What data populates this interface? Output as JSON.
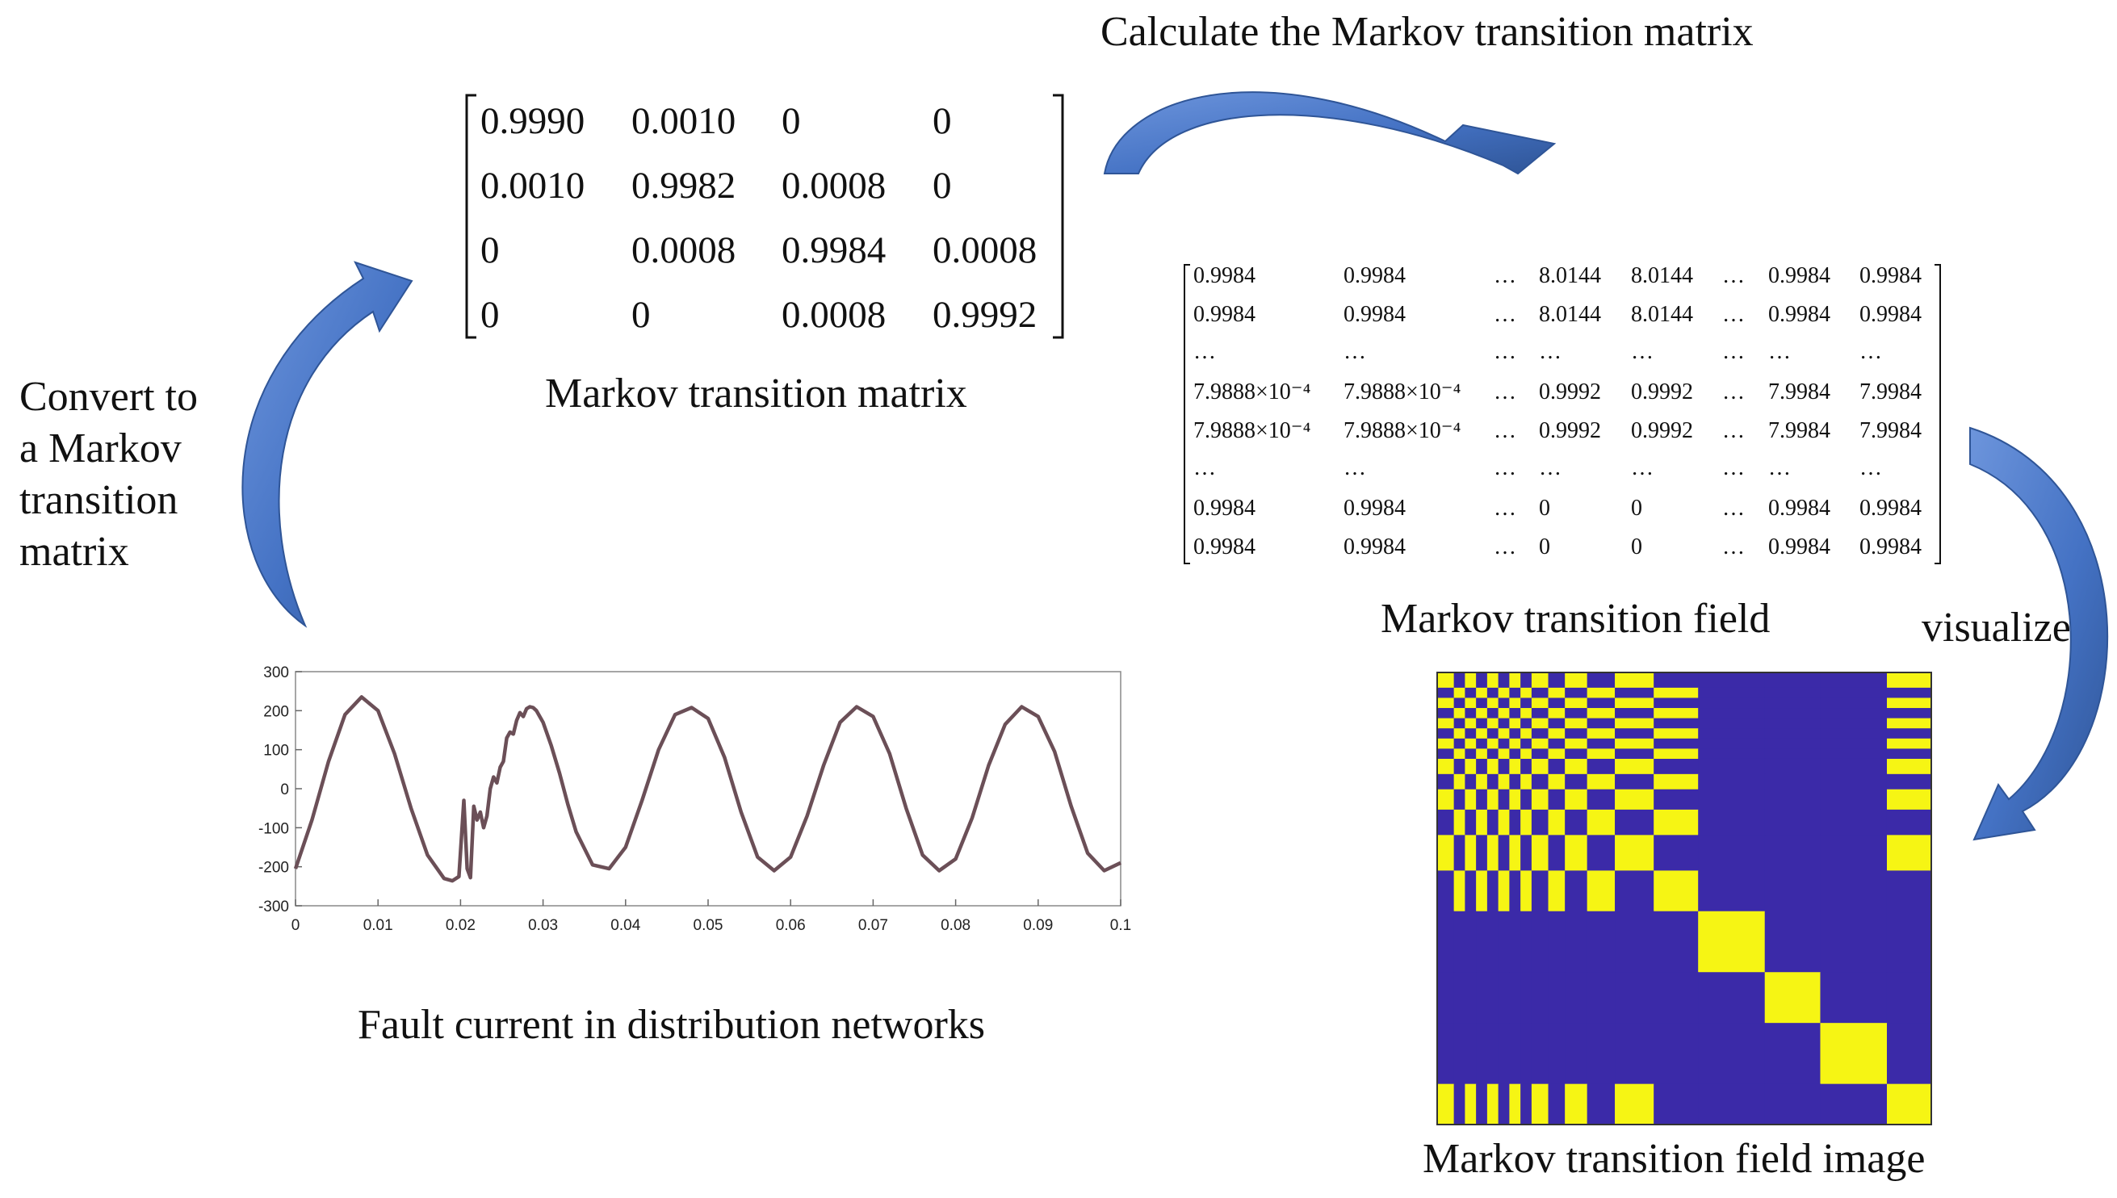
{
  "labels": {
    "calc": "Calculate the Markov transition matrix",
    "convert": [
      "Convert to",
      "a Markov",
      "transition",
      "matrix"
    ],
    "matrix_caption": "Markov transition matrix",
    "field_caption": "Markov transition field",
    "visualize": "visualize",
    "image_caption": "Markov transition field image",
    "signal_caption": "Fault current in distribution networks"
  },
  "transition_matrix": [
    [
      "0.9990",
      "0.0010",
      "0",
      "0"
    ],
    [
      "0.0010",
      "0.9982",
      "0.0008",
      "0"
    ],
    [
      "0",
      "0.0008",
      "0.9984",
      "0.0008"
    ],
    [
      "0",
      "0",
      "0.0008",
      "0.9992"
    ]
  ],
  "transition_field": [
    [
      "0.9984",
      "0.9984",
      "…",
      "8.0144",
      "8.0144",
      "…",
      "0.9984",
      "0.9984"
    ],
    [
      "0.9984",
      "0.9984",
      "…",
      "8.0144",
      "8.0144",
      "…",
      "0.9984",
      "0.9984"
    ],
    [
      "…",
      "…",
      "…",
      "…",
      "…",
      "…",
      "…",
      "…"
    ],
    [
      "7.9888×10⁻⁴",
      "7.9888×10⁻⁴",
      "…",
      "0.9992",
      "0.9992",
      "…",
      "7.9984",
      "7.9984"
    ],
    [
      "7.9888×10⁻⁴",
      "7.9888×10⁻⁴",
      "…",
      "0.9992",
      "0.9992",
      "…",
      "7.9984",
      "7.9984"
    ],
    [
      "…",
      "…",
      "…",
      "…",
      "…",
      "…",
      "…",
      "…"
    ],
    [
      "0.9984",
      "0.9984",
      "…",
      "0",
      "0",
      "…",
      "0.9984",
      "0.9984"
    ],
    [
      "0.9984",
      "0.9984",
      "…",
      "0",
      "0",
      "…",
      "0.9984",
      "0.9984"
    ]
  ],
  "chart_data": {
    "type": "line",
    "title": "Fault current in distribution networks",
    "xlabel": "",
    "ylabel": "",
    "xlim": [
      0,
      0.1
    ],
    "ylim": [
      -300,
      300
    ],
    "x_ticks": [
      "0",
      "0.01",
      "0.02",
      "0.03",
      "0.04",
      "0.05",
      "0.06",
      "0.07",
      "0.08",
      "0.09",
      "0.1"
    ],
    "y_ticks": [
      "300",
      "200",
      "100",
      "0",
      "-100",
      "-200",
      "-300"
    ],
    "series": [
      {
        "name": "fault current",
        "color": "#6b4f57",
        "x": [
          0,
          0.002,
          0.004,
          0.006,
          0.008,
          0.01,
          0.012,
          0.014,
          0.016,
          0.018,
          0.019,
          0.0198,
          0.0204,
          0.0208,
          0.0212,
          0.0216,
          0.022,
          0.0224,
          0.0228,
          0.0232,
          0.0236,
          0.024,
          0.0244,
          0.0248,
          0.0252,
          0.0256,
          0.026,
          0.0264,
          0.0268,
          0.0272,
          0.0276,
          0.028,
          0.0284,
          0.0288,
          0.0292,
          0.03,
          0.031,
          0.032,
          0.033,
          0.034,
          0.036,
          0.038,
          0.04,
          0.042,
          0.044,
          0.046,
          0.048,
          0.05,
          0.052,
          0.054,
          0.056,
          0.058,
          0.06,
          0.062,
          0.064,
          0.066,
          0.068,
          0.07,
          0.072,
          0.074,
          0.076,
          0.078,
          0.08,
          0.082,
          0.084,
          0.086,
          0.088,
          0.09,
          0.092,
          0.094,
          0.096,
          0.098,
          0.1
        ],
        "y": [
          -205,
          -80,
          70,
          190,
          235,
          200,
          90,
          -50,
          -170,
          -230,
          -236,
          -225,
          -30,
          -205,
          -228,
          -45,
          -80,
          -60,
          -100,
          -70,
          0,
          30,
          15,
          55,
          70,
          130,
          145,
          140,
          175,
          195,
          185,
          205,
          210,
          208,
          200,
          170,
          110,
          40,
          -40,
          -110,
          -195,
          -205,
          -150,
          -30,
          100,
          190,
          208,
          180,
          80,
          -60,
          -175,
          -210,
          -175,
          -70,
          60,
          170,
          210,
          185,
          90,
          -50,
          -170,
          -210,
          -180,
          -75,
          60,
          165,
          210,
          185,
          95,
          -45,
          -165,
          -210,
          -190
        ]
      }
    ]
  },
  "mtf_image": {
    "colors": {
      "yellow": "#f6f514",
      "blue": "#3b2aa8"
    },
    "segment_weights": [
      3,
      2,
      2,
      2,
      2,
      2,
      2,
      2,
      3,
      3,
      4,
      5,
      7,
      8,
      12,
      10,
      12,
      8
    ],
    "segment_states": [
      1,
      2,
      1,
      2,
      1,
      2,
      1,
      2,
      1,
      2,
      1,
      2,
      1,
      2,
      3,
      4,
      5,
      1
    ]
  },
  "arrow_color": "#4472c4"
}
